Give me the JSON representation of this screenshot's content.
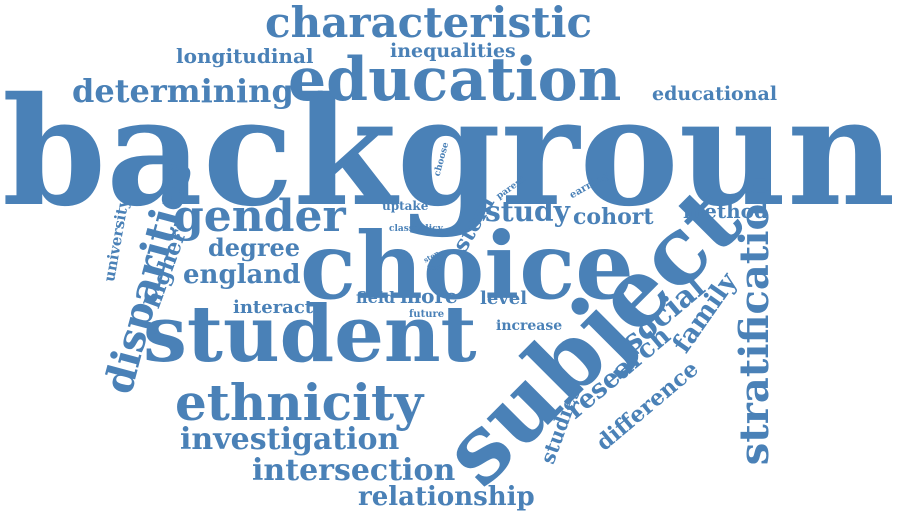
{
  "word_cloud": {
    "color": "#4a81b7",
    "background": "#ffffff",
    "words": {
      "background": "background",
      "choice": "choice",
      "subject": "subject",
      "student": "student",
      "education": "education",
      "characteristic": "characteristic",
      "ethnicity": "ethnicity",
      "gender": "gender",
      "stratification": "stratification",
      "disparities": "disparities",
      "investigation": "investigation",
      "intersection": "intersection",
      "relationship": "relationship",
      "determining": "determining",
      "social": "social",
      "research": "research",
      "family": "family",
      "difference": "difference",
      "study": "study",
      "england": "england",
      "degree": "degree",
      "higher": "higher",
      "university": "university",
      "cohort": "cohort",
      "method": "method",
      "educational": "educational",
      "longitudinal": "longitudinal",
      "inequalities": "inequalities",
      "stem": "stem",
      "interact": "interact",
      "field": "field",
      "more": "more",
      "level": "level",
      "increase": "increase",
      "studies": "studies",
      "uptake": "uptake",
      "class": "class",
      "policy": "policy",
      "choose": "choose",
      "parent": "parent",
      "earning": "earning",
      "step": "step",
      "test": "test",
      "future": "future"
    }
  }
}
